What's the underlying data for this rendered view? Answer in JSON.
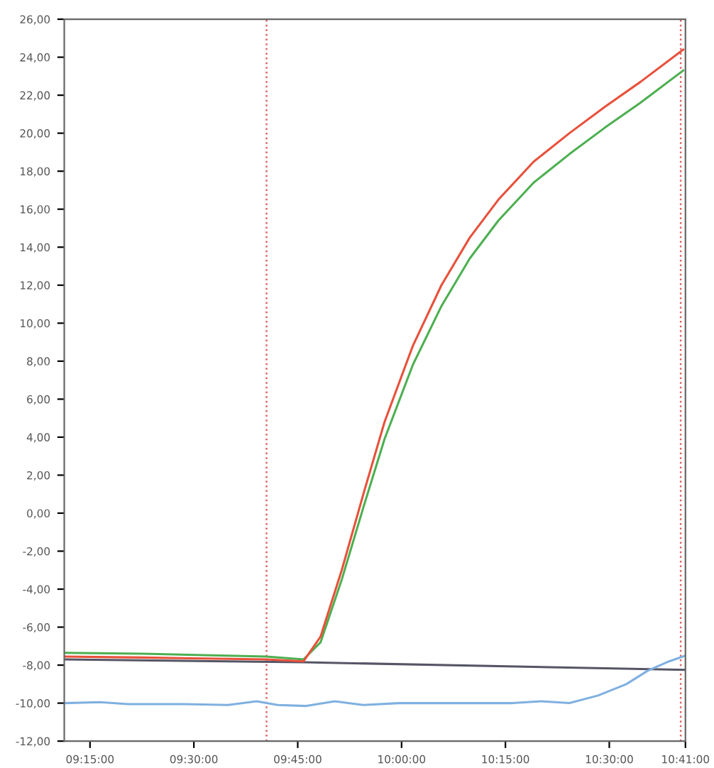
{
  "chart_data": {
    "type": "line",
    "xlim": [
      9.188,
      10.68333
    ],
    "ylim": [
      -12,
      26
    ],
    "xticks": [
      {
        "value": 9.25,
        "label": "09:15:00"
      },
      {
        "value": 9.5,
        "label": "09:30:00"
      },
      {
        "value": 9.75,
        "label": "09:45:00"
      },
      {
        "value": 10.0,
        "label": "10:00:00"
      },
      {
        "value": 10.25,
        "label": "10:15:00"
      },
      {
        "value": 10.5,
        "label": "10:30:00"
      },
      {
        "value": 10.68333,
        "label": "10:41:00"
      }
    ],
    "yticks": [
      {
        "value": -12,
        "label": "-12,00"
      },
      {
        "value": -10,
        "label": "-10,00"
      },
      {
        "value": -8,
        "label": "-8,00"
      },
      {
        "value": -6,
        "label": "-6,00"
      },
      {
        "value": -4,
        "label": "-4,00"
      },
      {
        "value": -2,
        "label": "-2,00"
      },
      {
        "value": 0,
        "label": "0,00"
      },
      {
        "value": 2,
        "label": "2,00"
      },
      {
        "value": 4,
        "label": "4,00"
      },
      {
        "value": 6,
        "label": "6,00"
      },
      {
        "value": 8,
        "label": "8,00"
      },
      {
        "value": 10,
        "label": "10,00"
      },
      {
        "value": 12,
        "label": "12,00"
      },
      {
        "value": 14,
        "label": "14,00"
      },
      {
        "value": 16,
        "label": "16,00"
      },
      {
        "value": 18,
        "label": "18,00"
      },
      {
        "value": 20,
        "label": "20,00"
      },
      {
        "value": 22,
        "label": "22,00"
      },
      {
        "value": 24,
        "label": "24,00"
      },
      {
        "value": 26,
        "label": "26,00"
      }
    ],
    "grid": false,
    "line_style": "solid",
    "marker": "none",
    "ref_lines": [
      {
        "axis": "x",
        "value": 9.675,
        "color": "#e06060",
        "line_style": "dotted"
      },
      {
        "axis": "x",
        "value": 10.672,
        "color": "#e06060",
        "line_style": "dotted"
      }
    ],
    "series": [
      {
        "color": "#555566",
        "x": [
          9.188,
          9.764,
          10.683
        ],
        "values": [
          -7.7,
          -7.85,
          -8.25
        ]
      },
      {
        "color": "#7fb0e0",
        "x": [
          9.188,
          9.274,
          9.342,
          9.479,
          9.582,
          9.651,
          9.702,
          9.771,
          9.839,
          9.908,
          9.993,
          10.13,
          10.267,
          10.336,
          10.404,
          10.473,
          10.541,
          10.592,
          10.644,
          10.683
        ],
        "values": [
          -10.0,
          -9.95,
          -10.05,
          -10.05,
          -10.1,
          -9.9,
          -10.1,
          -10.15,
          -9.9,
          -10.1,
          -10.0,
          -10.0,
          -10.0,
          -9.9,
          -10.0,
          -9.6,
          -9.0,
          -8.3,
          -7.8,
          -7.5
        ]
      },
      {
        "color": "#4caf50",
        "x": [
          9.188,
          9.377,
          9.675,
          9.764,
          9.805,
          9.856,
          9.908,
          9.959,
          10.027,
          10.096,
          10.164,
          10.233,
          10.318,
          10.404,
          10.49,
          10.575,
          10.678
        ],
        "values": [
          -7.35,
          -7.4,
          -7.55,
          -7.7,
          -6.8,
          -3.5,
          0.3,
          3.9,
          7.8,
          10.9,
          13.4,
          15.4,
          17.4,
          18.9,
          20.3,
          21.6,
          23.3
        ]
      },
      {
        "color": "#e8503a",
        "x": [
          9.188,
          9.377,
          9.675,
          9.764,
          9.805,
          9.856,
          9.908,
          9.959,
          10.027,
          10.096,
          10.164,
          10.233,
          10.318,
          10.404,
          10.49,
          10.575,
          10.678
        ],
        "values": [
          -7.55,
          -7.6,
          -7.7,
          -7.8,
          -6.5,
          -3.0,
          1.0,
          4.8,
          8.8,
          12.0,
          14.5,
          16.5,
          18.5,
          20.0,
          21.4,
          22.7,
          24.4
        ]
      }
    ]
  }
}
